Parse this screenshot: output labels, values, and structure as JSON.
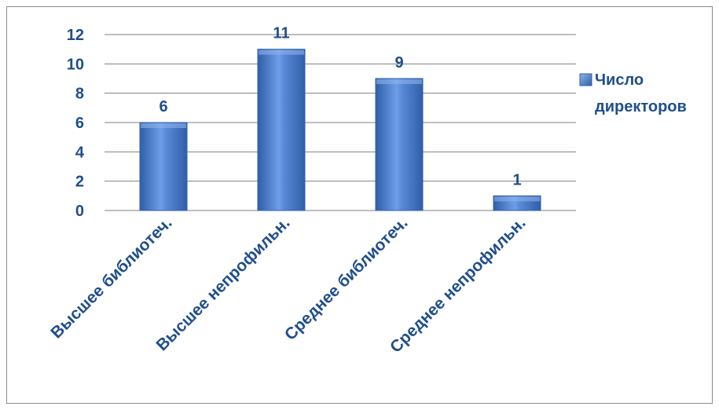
{
  "chart_data": {
    "type": "bar",
    "categories": [
      "Высшее библиотеч.",
      "Высшее непрофильн.",
      "Среднее библиотеч.",
      "Среднее непрофильн."
    ],
    "series": [
      {
        "name": "Число директоров",
        "values": [
          6,
          11,
          9,
          1
        ]
      }
    ],
    "ylim": [
      0,
      12
    ],
    "yticks": [
      0,
      2,
      4,
      6,
      8,
      10,
      12
    ],
    "grid": true,
    "legend": {
      "position": "right",
      "lines": [
        "Число",
        "директоров"
      ]
    },
    "colors": {
      "bar": "#4f81d4",
      "bar_dark": "#2f5fa8",
      "bar_light": "#8db3ec",
      "text": "#1f4e8c",
      "grid": "#7f7f7f"
    }
  }
}
